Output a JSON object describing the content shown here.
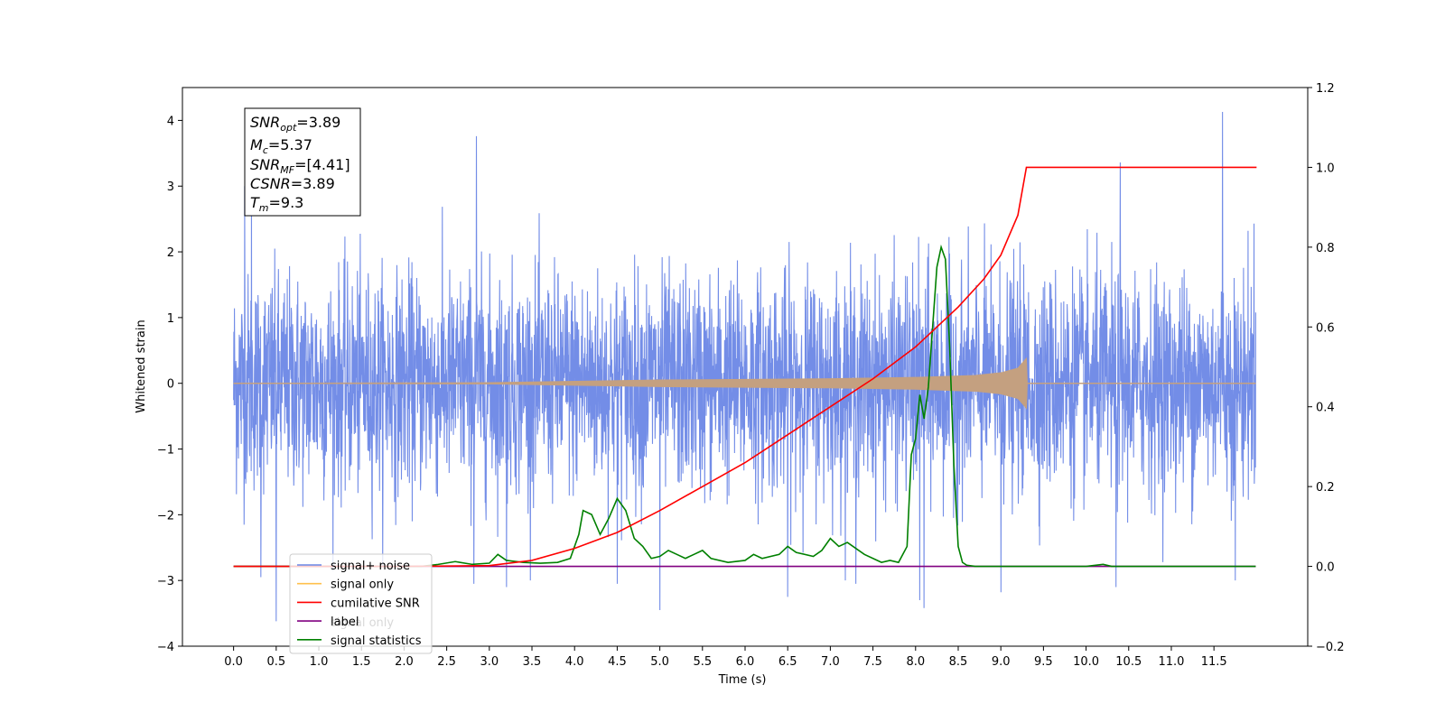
{
  "chart_data": {
    "type": "line",
    "xlabel": "Time (s)",
    "ylabel": "Whitened strain",
    "xlim": [
      -0.6,
      12.6
    ],
    "ylim": [
      -4,
      4.5
    ],
    "y2lim": [
      -0.2,
      1.2
    ],
    "x_ticks": [
      0.0,
      0.5,
      1.0,
      1.5,
      2.0,
      2.5,
      3.0,
      3.5,
      4.0,
      4.5,
      5.0,
      5.5,
      6.0,
      6.5,
      7.0,
      7.5,
      8.0,
      8.5,
      9.0,
      9.5,
      10.0,
      10.5,
      11.0,
      11.5
    ],
    "x_tick_labels": [
      "0.0",
      "0.5",
      "1.0",
      "1.5",
      "2.0",
      "2.5",
      "3.0",
      "3.5",
      "4.0",
      "4.5",
      "5.0",
      "5.5",
      "6.0",
      "6.5",
      "7.0",
      "7.5",
      "8.0",
      "8.5",
      "9.0",
      "9.5",
      "10.0",
      "10.5",
      "11.0",
      "11.5"
    ],
    "y_ticks": [
      -4,
      -3,
      -2,
      -1,
      0,
      1,
      2,
      3,
      4
    ],
    "y_tick_labels": [
      "−4",
      "−3",
      "−2",
      "−1",
      "0",
      "1",
      "2",
      "3",
      "4"
    ],
    "y2_ticks": [
      -0.2,
      0.0,
      0.2,
      0.4,
      0.6,
      0.8,
      1.0,
      1.2
    ],
    "y2_tick_labels": [
      "−0.2",
      "0.0",
      "0.2",
      "0.4",
      "0.6",
      "0.8",
      "1.0",
      "1.2"
    ],
    "grid": false,
    "legend_position": "lower-left",
    "legend": [
      {
        "label": "signal+ noise",
        "color": "#6b87e6"
      },
      {
        "label": "signal only",
        "color": "#ffc04d"
      },
      {
        "label": "cumilative SNR",
        "color": "#ff0000"
      },
      {
        "label": "label",
        "color": "#800080"
      },
      {
        "label": "signal statistics",
        "color": "#008000"
      }
    ],
    "ghost_legend_text": "signal only",
    "annotation": {
      "snr_opt": {
        "base": "SNR",
        "sub": "opt",
        "value": "=3.89"
      },
      "mc": {
        "base": "M",
        "sub": "c",
        "value": "=5.37"
      },
      "snr_mf": {
        "base": "SNR",
        "sub": "MF",
        "value": "=[4.41]"
      },
      "csnr": {
        "base": "CSNR",
        "value": "=3.89"
      },
      "tm": {
        "base": "T",
        "sub": "m",
        "value": "=9.3"
      }
    },
    "series": [
      {
        "name": "signal+ noise",
        "axis": "left",
        "color": "#6b87e6",
        "x_range": [
          0.0,
          11.99
        ],
        "typical_envelope": [
          -1.6,
          1.6
        ],
        "spikes": [
          {
            "x": 0.13,
            "y": 3.0
          },
          {
            "x": 0.21,
            "y": 2.8
          },
          {
            "x": 0.5,
            "y": -3.62
          },
          {
            "x": 0.32,
            "y": -2.95
          },
          {
            "x": 2.85,
            "y": 3.76
          },
          {
            "x": 2.82,
            "y": -3.05
          },
          {
            "x": 3.2,
            "y": -3.1
          },
          {
            "x": 4.5,
            "y": -3.05
          },
          {
            "x": 5.0,
            "y": -3.45
          },
          {
            "x": 6.5,
            "y": -3.25
          },
          {
            "x": 7.3,
            "y": -3.05
          },
          {
            "x": 8.1,
            "y": -3.42
          },
          {
            "x": 8.05,
            "y": -3.3
          },
          {
            "x": 9.0,
            "y": -3.18
          },
          {
            "x": 10.4,
            "y": 3.36
          },
          {
            "x": 10.35,
            "y": -3.1
          },
          {
            "x": 11.6,
            "y": 4.13
          },
          {
            "x": 11.75,
            "y": -3.0
          },
          {
            "x": 11.97,
            "y": 2.43
          }
        ]
      },
      {
        "name": "signal only",
        "axis": "left",
        "color": "#c4a080",
        "envelope": [
          [
            0.0,
            0.0
          ],
          [
            3.0,
            0.01
          ],
          [
            4.0,
            0.03
          ],
          [
            5.0,
            0.05
          ],
          [
            6.0,
            0.06
          ],
          [
            7.0,
            0.07
          ],
          [
            8.0,
            0.09
          ],
          [
            8.7,
            0.12
          ],
          [
            9.0,
            0.16
          ],
          [
            9.2,
            0.23
          ],
          [
            9.3,
            0.38
          ],
          [
            9.31,
            0.0
          ],
          [
            11.99,
            0.0
          ]
        ]
      },
      {
        "name": "cumilative SNR",
        "axis": "right",
        "color": "#ff0000",
        "x": [
          0.0,
          2.0,
          3.0,
          3.5,
          4.0,
          4.5,
          5.0,
          5.5,
          6.0,
          6.5,
          7.0,
          7.5,
          8.0,
          8.5,
          8.8,
          9.0,
          9.1,
          9.2,
          9.3,
          12.0
        ],
        "y": [
          0.0,
          0.0,
          0.002,
          0.015,
          0.045,
          0.085,
          0.14,
          0.2,
          0.26,
          0.33,
          0.4,
          0.47,
          0.55,
          0.65,
          0.72,
          0.78,
          0.83,
          0.88,
          1.0,
          1.0
        ]
      },
      {
        "name": "label",
        "axis": "right",
        "color": "#800080",
        "x": [
          0.0,
          11.99
        ],
        "y": [
          0.0,
          0.0
        ]
      },
      {
        "name": "signal statistics",
        "axis": "right",
        "color": "#008000",
        "x": [
          0.0,
          2.2,
          2.4,
          2.6,
          2.8,
          3.0,
          3.1,
          3.2,
          3.4,
          3.6,
          3.8,
          3.95,
          4.05,
          4.1,
          4.2,
          4.3,
          4.4,
          4.5,
          4.6,
          4.7,
          4.8,
          4.9,
          5.0,
          5.1,
          5.2,
          5.3,
          5.4,
          5.5,
          5.6,
          5.8,
          6.0,
          6.1,
          6.2,
          6.4,
          6.5,
          6.6,
          6.8,
          6.9,
          7.0,
          7.1,
          7.2,
          7.4,
          7.6,
          7.7,
          7.8,
          7.9,
          7.95,
          8.0,
          8.05,
          8.1,
          8.15,
          8.2,
          8.25,
          8.3,
          8.35,
          8.4,
          8.45,
          8.5,
          8.55,
          8.6,
          8.7,
          9.0,
          10.0,
          10.2,
          10.3,
          10.5,
          11.99
        ],
        "y": [
          0.0,
          0.0,
          0.005,
          0.012,
          0.005,
          0.008,
          0.03,
          0.015,
          0.01,
          0.008,
          0.01,
          0.02,
          0.08,
          0.14,
          0.13,
          0.08,
          0.12,
          0.17,
          0.14,
          0.07,
          0.05,
          0.02,
          0.025,
          0.04,
          0.03,
          0.02,
          0.03,
          0.04,
          0.02,
          0.01,
          0.015,
          0.03,
          0.02,
          0.03,
          0.05,
          0.035,
          0.025,
          0.04,
          0.07,
          0.05,
          0.06,
          0.03,
          0.01,
          0.015,
          0.01,
          0.05,
          0.28,
          0.32,
          0.43,
          0.37,
          0.45,
          0.6,
          0.75,
          0.8,
          0.77,
          0.55,
          0.25,
          0.05,
          0.01,
          0.003,
          0.0,
          0.0,
          0.0,
          0.005,
          0.0,
          0.0,
          0.0
        ]
      }
    ]
  }
}
